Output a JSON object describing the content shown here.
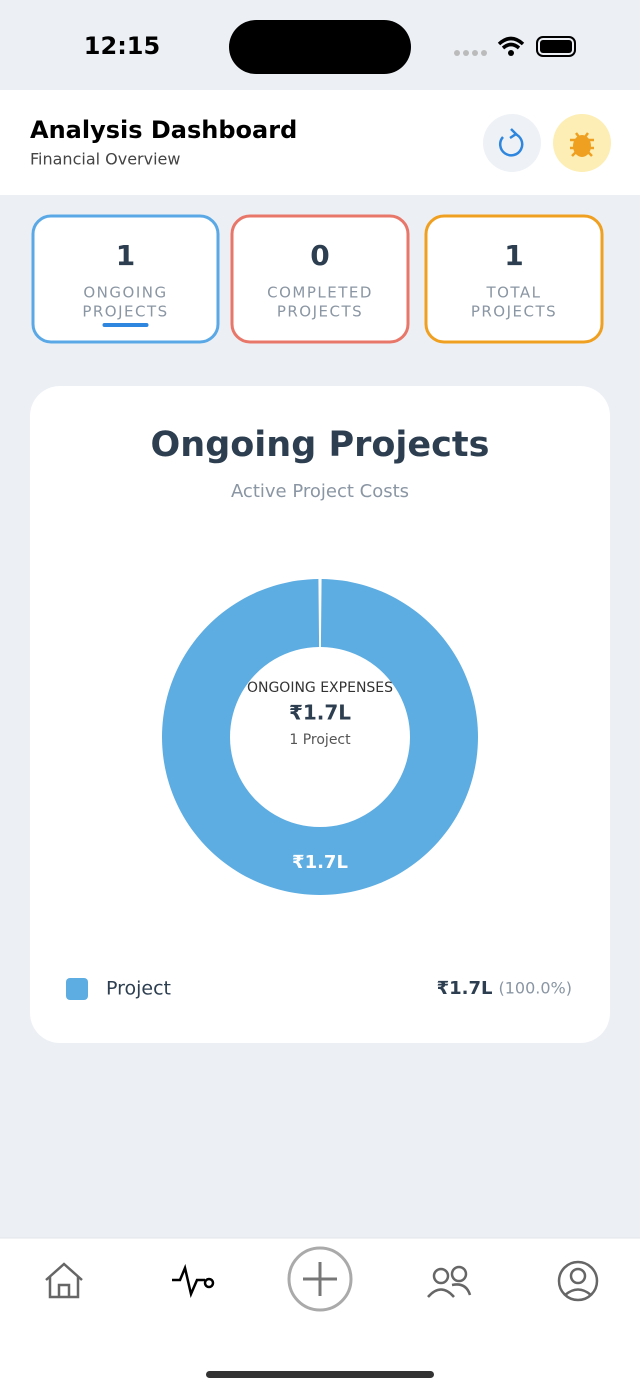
{
  "status_bar": {
    "time": "12:15"
  },
  "header": {
    "title": "Analysis Dashboard",
    "subtitle": "Financial Overview"
  },
  "stats": [
    {
      "value": 1,
      "label": [
        "ONGOING",
        "PROJECTS"
      ],
      "color": "#5aa9e6"
    },
    {
      "value": 0,
      "label": [
        "COMPLETED",
        "PROJECTS"
      ],
      "color": "#e8776a"
    },
    {
      "value": 1,
      "label": [
        "TOTAL",
        "PROJECTS"
      ],
      "color": "#f0a020"
    }
  ],
  "card": {
    "title": "Ongoing Projects",
    "subtitle": "Active Project Costs",
    "center_label": "ONGOING EXPENSES",
    "center_value": "₹1.7L",
    "center_sub": "1 Project",
    "chart": {
      "type": "pie",
      "slices": [
        {
          "name": "Project",
          "value": 170000,
          "value_label": "₹1.7L",
          "share": "(100.0%)",
          "color": "#5dade2"
        }
      ]
    }
  }
}
